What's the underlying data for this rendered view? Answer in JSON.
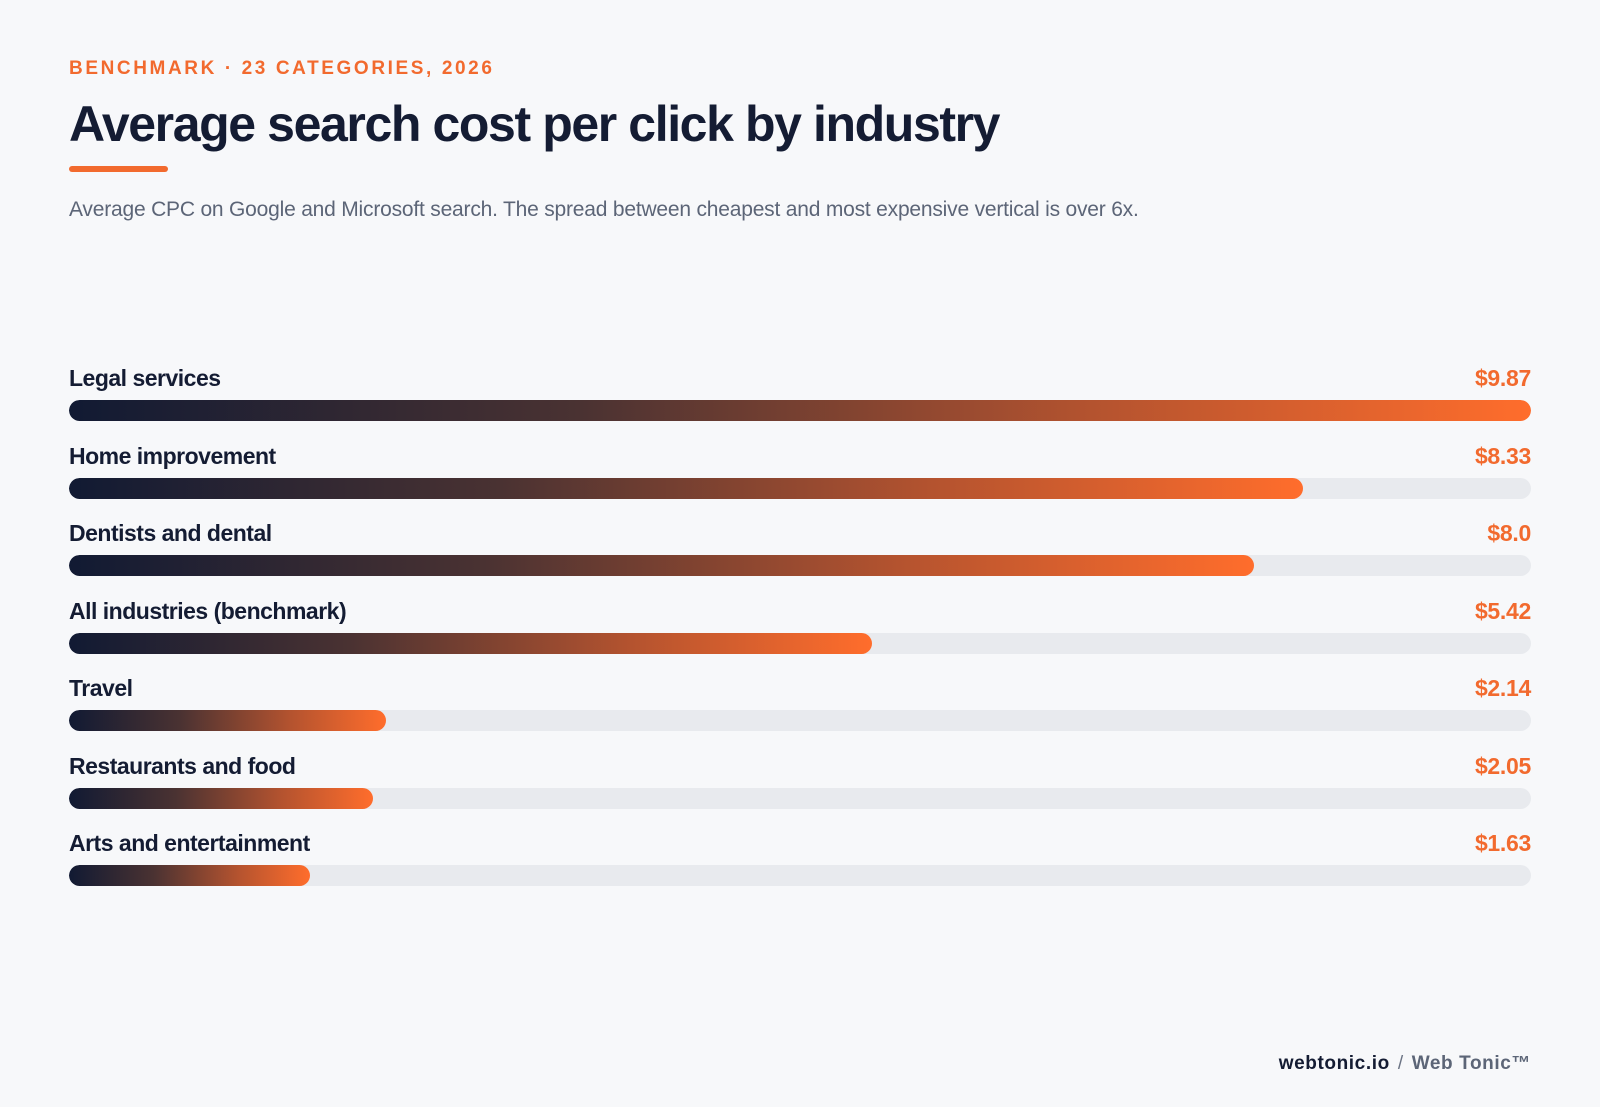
{
  "header": {
    "eyebrow": "BENCHMARK · 23 CATEGORIES, 2026",
    "subtitle": "Average CPC on Google and Microsoft search. The spread between cheapest and most expensive vertical is over 6x."
  },
  "footer": {
    "site": "webtonic.io",
    "separator": "/",
    "brand": "Web Tonic™"
  },
  "colors": {
    "accent": "#f26a2e",
    "ink": "#141c33",
    "track": "#e8eaee",
    "bar_start": "#111a33",
    "bar_end": "#ff6d2c"
  },
  "chart_data": {
    "type": "bar",
    "orientation": "horizontal",
    "title": "Average search cost per click by industry",
    "xlim": [
      0,
      9.87
    ],
    "categories": [
      "Legal services",
      "Home improvement",
      "Dentists and dental",
      "All industries (benchmark)",
      "Travel",
      "Restaurants and food",
      "Arts and entertainment"
    ],
    "values": [
      9.87,
      8.33,
      8.0,
      5.42,
      2.14,
      2.05,
      1.63
    ],
    "value_labels": [
      "$9.87",
      "$8.33",
      "$8.0",
      "$5.42",
      "$2.14",
      "$2.05",
      "$1.63"
    ],
    "grid": false,
    "legend": "none"
  }
}
